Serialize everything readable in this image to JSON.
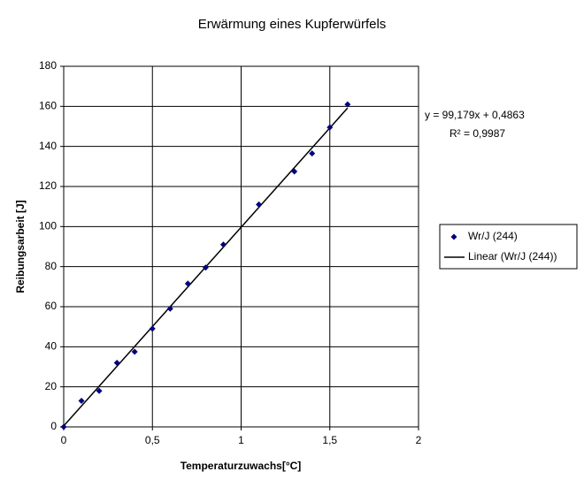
{
  "chart_data": {
    "type": "scatter",
    "title": "Erwärmung eines Kupferwürfels",
    "x_label": "Temperaturzuwachs[°C]",
    "y_label": "Reibungsarbeit [J]",
    "x": [
      0,
      0.1,
      0.2,
      0.3,
      0.4,
      0.5,
      0.6,
      0.7,
      0.8,
      0.9,
      1.1,
      1.3,
      1.4,
      1.5,
      1.6
    ],
    "series": [
      {
        "name": "Wr/J (244)",
        "color": "#000080",
        "values": [
          0,
          13,
          18,
          32,
          37.5,
          49,
          59,
          71.5,
          79.5,
          91,
          111,
          127.5,
          136.5,
          149.5,
          161
        ]
      }
    ],
    "trendline": {
      "name": "Linear (Wr/J (244))",
      "color": "#000000",
      "slope": 99.179,
      "intercept": 0.4863,
      "equation": "y = 99,179x + 0,4863",
      "r2": "R² = 0,9987"
    },
    "xlim": [
      0,
      2
    ],
    "xticks": [
      0,
      {
        "value": 0.5,
        "label": "0,5"
      },
      1,
      {
        "value": 1.5,
        "label": "1,5"
      },
      2
    ],
    "ylim": [
      0,
      180
    ],
    "yticks": [
      0,
      20,
      40,
      60,
      80,
      100,
      120,
      140,
      160,
      180
    ],
    "grid": true,
    "legend": "right"
  }
}
